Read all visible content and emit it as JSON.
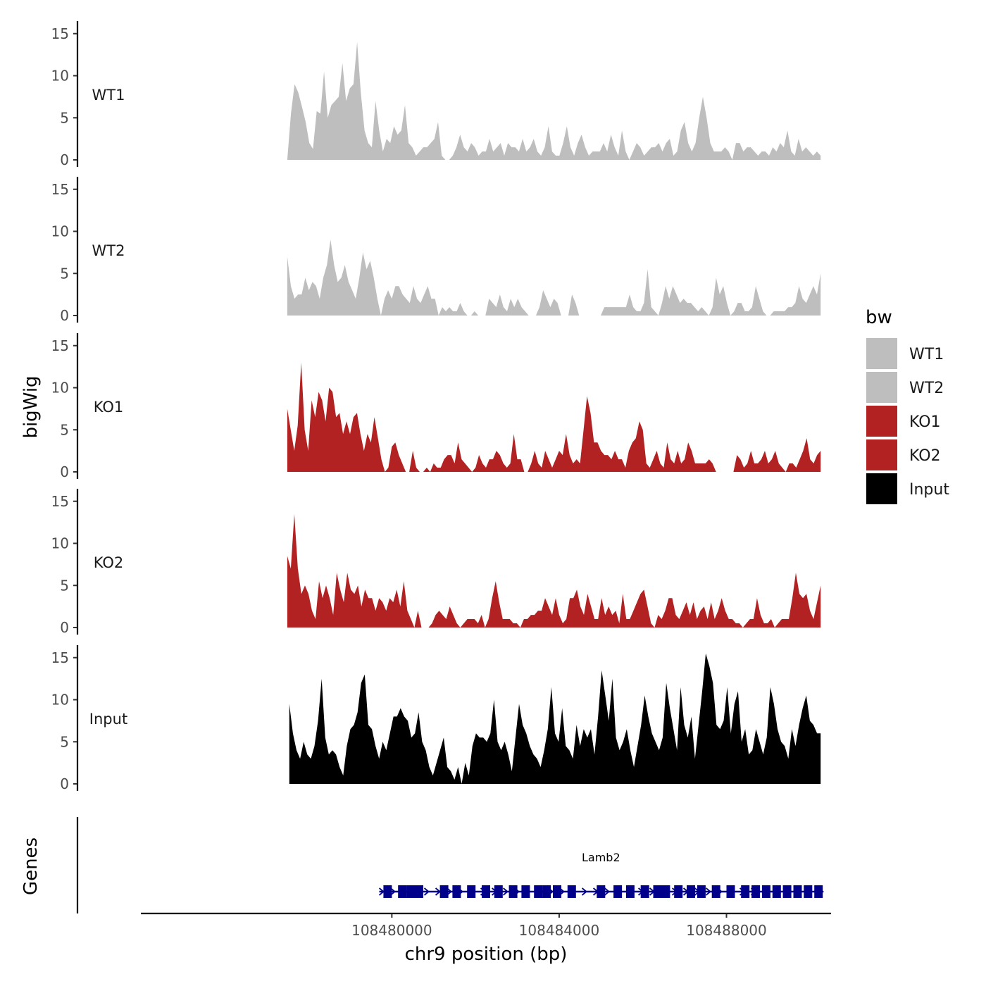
{
  "chart_data": {
    "type": "area",
    "title": "",
    "xlabel": "chr9 position (bp)",
    "ylabel": "bigWig",
    "genes_label": "Genes",
    "xlim": [
      108474000,
      108490500
    ],
    "ylim": [
      0,
      16
    ],
    "x_ticks": [
      {
        "value": 108480000,
        "label": "108480000"
      },
      {
        "value": 108484000,
        "label": "108484000"
      },
      {
        "value": 108488000,
        "label": "108488000"
      }
    ],
    "y_ticks": [
      {
        "value": 0,
        "label": "0"
      },
      {
        "value": 5,
        "label": "5"
      },
      {
        "value": 10,
        "label": "10"
      },
      {
        "value": 15,
        "label": "15"
      }
    ],
    "legend": {
      "title": "bw",
      "entries": [
        {
          "label": "WT1",
          "color": "#bebebe"
        },
        {
          "label": "WT2",
          "color": "#bebebe"
        },
        {
          "label": "KO1",
          "color": "#b22222"
        },
        {
          "label": "KO2",
          "color": "#b22222"
        },
        {
          "label": "Input",
          "color": "#000000"
        }
      ]
    },
    "series": [
      {
        "name": "WT1",
        "label": "WT1",
        "color": "#bebebe",
        "x_start": 108477500,
        "x_end": 108490250,
        "values": [
          0.0,
          5.5,
          9.0,
          8.0,
          6.3,
          4.5,
          2.0,
          1.3,
          5.8,
          5.5,
          10.5,
          5.0,
          6.5,
          7.0,
          7.5,
          11.5,
          7.0,
          8.5,
          9.0,
          14.0,
          8.0,
          3.5,
          2.0,
          1.5,
          7.0,
          3.5,
          1.0,
          2.5,
          2.0,
          4.0,
          3.0,
          3.5,
          6.5,
          2.0,
          1.5,
          0.5,
          1.0,
          1.5,
          1.5,
          2.0,
          2.5,
          4.5,
          0.5,
          0.0,
          0.0,
          0.5,
          1.5,
          3.0,
          1.5,
          1.0,
          2.0,
          1.5,
          0.5,
          1.0,
          1.0,
          2.5,
          1.0,
          1.5,
          2.0,
          0.5,
          2.0,
          1.5,
          1.5,
          1.0,
          2.5,
          1.0,
          1.5,
          2.5,
          1.0,
          0.5,
          1.5,
          4.0,
          1.0,
          0.5,
          0.5,
          2.0,
          4.0,
          1.5,
          0.5,
          2.0,
          3.0,
          1.5,
          0.5,
          1.0,
          1.0,
          1.0,
          2.0,
          1.0,
          3.0,
          1.5,
          0.5,
          3.5,
          1.0,
          0.0,
          1.0,
          2.0,
          1.5,
          0.5,
          1.0,
          1.5,
          1.5,
          2.0,
          1.0,
          2.0,
          2.5,
          0.5,
          1.0,
          3.5,
          4.5,
          2.0,
          1.0,
          2.0,
          5.0,
          7.5,
          5.0,
          2.0,
          1.0,
          1.0,
          1.0,
          1.5,
          1.0,
          0.0,
          2.0,
          2.0,
          1.0,
          1.5,
          1.5,
          1.0,
          0.5,
          1.0,
          1.0,
          0.5,
          1.5,
          1.0,
          2.0,
          1.5,
          3.5,
          1.0,
          0.5,
          2.5,
          1.0,
          1.5,
          1.0,
          0.5,
          1.0,
          0.5
        ]
      },
      {
        "name": "WT2",
        "label": "WT2",
        "color": "#bebebe",
        "x_start": 108477500,
        "x_end": 108490250,
        "values": [
          7.0,
          3.5,
          2.0,
          2.5,
          2.5,
          4.5,
          3.0,
          4.0,
          3.5,
          2.0,
          4.5,
          6.0,
          9.0,
          6.0,
          4.0,
          4.5,
          6.0,
          4.0,
          3.0,
          2.0,
          4.5,
          7.5,
          5.5,
          6.5,
          4.5,
          2.0,
          0.0,
          2.0,
          3.0,
          2.0,
          3.5,
          3.5,
          2.5,
          2.0,
          1.5,
          3.5,
          2.0,
          1.5,
          2.5,
          3.5,
          2.0,
          2.0,
          0.0,
          1.0,
          0.5,
          1.0,
          0.5,
          0.5,
          1.5,
          0.5,
          0.0,
          0.0,
          0.5,
          0.0,
          0.0,
          0.0,
          2.0,
          1.5,
          1.0,
          2.5,
          1.0,
          0.5,
          2.0,
          1.0,
          2.0,
          1.0,
          0.5,
          0.0,
          0.0,
          0.0,
          1.0,
          3.0,
          2.0,
          1.0,
          2.0,
          1.5,
          0.0,
          0.0,
          0.0,
          2.5,
          1.5,
          0.0,
          0.0,
          0.0,
          0.0,
          0.0,
          0.0,
          0.0,
          1.0,
          1.0,
          1.0,
          1.0,
          1.0,
          1.0,
          1.0,
          2.5,
          1.0,
          0.5,
          0.5,
          1.5,
          5.5,
          1.0,
          0.5,
          0.0,
          1.5,
          3.5,
          2.0,
          3.5,
          2.5,
          1.5,
          2.0,
          1.5,
          1.5,
          1.0,
          0.5,
          1.0,
          0.5,
          0.0,
          1.0,
          4.5,
          2.5,
          3.5,
          1.5,
          0.0,
          0.5,
          1.5,
          1.5,
          0.5,
          0.5,
          1.0,
          3.5,
          2.0,
          0.5,
          0.0,
          0.0,
          0.5,
          0.5,
          0.5,
          0.5,
          1.0,
          1.0,
          1.5,
          3.5,
          2.0,
          1.5,
          2.5,
          3.5,
          2.5,
          5.0
        ]
      },
      {
        "name": "KO1",
        "label": "KO1",
        "color": "#b22222",
        "x_start": 108477500,
        "x_end": 108490250,
        "values": [
          7.5,
          5.0,
          2.5,
          5.5,
          13.0,
          5.0,
          2.5,
          8.5,
          6.5,
          9.5,
          8.5,
          6.0,
          10.0,
          9.5,
          6.5,
          7.0,
          4.5,
          6.0,
          4.5,
          6.5,
          7.0,
          4.5,
          2.5,
          4.5,
          3.5,
          6.5,
          4.0,
          1.5,
          0.0,
          0.5,
          3.0,
          3.5,
          2.0,
          1.0,
          0.0,
          0.0,
          2.5,
          0.5,
          0.0,
          0.0,
          0.5,
          0.0,
          1.0,
          0.5,
          0.5,
          1.5,
          2.0,
          2.0,
          1.0,
          3.5,
          1.5,
          1.0,
          0.5,
          0.0,
          0.5,
          2.0,
          1.0,
          0.5,
          1.5,
          1.5,
          2.5,
          2.0,
          1.0,
          0.5,
          1.0,
          4.5,
          1.5,
          1.5,
          0.0,
          0.0,
          1.0,
          2.5,
          1.0,
          0.5,
          2.5,
          1.5,
          0.5,
          1.5,
          2.5,
          2.0,
          4.5,
          2.0,
          1.0,
          1.5,
          1.0,
          5.0,
          9.0,
          7.0,
          3.5,
          3.5,
          2.5,
          2.0,
          2.0,
          1.5,
          2.5,
          1.5,
          1.5,
          0.5,
          2.5,
          3.5,
          4.0,
          6.0,
          5.0,
          1.0,
          0.5,
          1.5,
          2.5,
          1.0,
          0.5,
          3.5,
          1.5,
          1.0,
          2.5,
          1.0,
          1.5,
          3.5,
          2.5,
          1.0,
          1.0,
          1.0,
          1.0,
          1.5,
          1.0,
          0.0,
          0.0,
          0.0,
          0.0,
          0.0,
          0.0,
          2.0,
          1.5,
          0.5,
          1.0,
          2.5,
          1.0,
          1.0,
          1.5,
          2.5,
          1.0,
          1.5,
          2.5,
          1.0,
          0.5,
          0.0,
          1.0,
          1.0,
          0.5,
          1.5,
          2.5,
          4.0,
          1.5,
          1.0,
          2.0,
          2.5
        ]
      },
      {
        "name": "KO2",
        "label": "KO2",
        "color": "#b22222",
        "x_start": 108477500,
        "x_end": 108490250,
        "values": [
          8.5,
          7.0,
          13.5,
          7.0,
          4.0,
          5.0,
          4.0,
          2.0,
          1.0,
          5.5,
          3.5,
          5.0,
          3.5,
          1.5,
          6.5,
          4.5,
          3.0,
          6.5,
          4.5,
          4.0,
          5.0,
          2.5,
          4.5,
          3.5,
          3.5,
          2.0,
          3.5,
          3.0,
          2.0,
          3.5,
          3.0,
          4.5,
          2.5,
          5.5,
          2.0,
          1.0,
          0.0,
          2.0,
          0.0,
          0.0,
          0.0,
          0.5,
          1.5,
          2.0,
          1.5,
          1.0,
          2.5,
          1.5,
          0.5,
          0.0,
          0.5,
          1.0,
          1.0,
          1.0,
          0.5,
          1.5,
          0.0,
          1.0,
          3.5,
          5.5,
          3.0,
          1.0,
          1.0,
          1.0,
          0.5,
          0.5,
          0.0,
          1.0,
          1.0,
          1.5,
          1.5,
          2.0,
          2.0,
          3.5,
          2.5,
          1.5,
          3.5,
          1.5,
          0.5,
          1.0,
          3.5,
          3.5,
          4.5,
          2.5,
          1.5,
          4.0,
          2.5,
          1.0,
          1.0,
          3.5,
          1.5,
          2.5,
          1.5,
          2.0,
          0.5,
          4.0,
          1.0,
          1.0,
          2.0,
          3.0,
          4.0,
          4.5,
          2.5,
          0.5,
          0.0,
          1.5,
          1.0,
          2.0,
          3.5,
          3.5,
          1.5,
          1.0,
          2.0,
          3.0,
          1.5,
          3.0,
          1.0,
          2.0,
          2.5,
          1.0,
          3.0,
          1.0,
          2.0,
          3.5,
          2.0,
          1.0,
          1.0,
          0.5,
          0.5,
          0.0,
          0.5,
          1.0,
          1.0,
          3.5,
          1.5,
          0.5,
          0.5,
          1.0,
          0.0,
          0.5,
          1.0,
          1.0,
          1.0,
          3.5,
          6.5,
          4.0,
          3.5,
          4.0,
          2.0,
          1.0,
          3.0,
          5.0
        ]
      },
      {
        "name": "Input",
        "label": "Input",
        "color": "#000000",
        "x_start": 108477550,
        "x_end": 108490250,
        "values": [
          9.5,
          6.0,
          4.0,
          3.0,
          5.0,
          3.5,
          3.0,
          4.5,
          7.5,
          12.5,
          5.5,
          3.5,
          4.0,
          3.5,
          2.0,
          1.0,
          4.5,
          6.5,
          7.0,
          8.5,
          12.0,
          13.0,
          7.0,
          6.5,
          4.5,
          3.0,
          5.0,
          4.0,
          6.0,
          8.0,
          8.0,
          9.0,
          8.0,
          7.5,
          5.5,
          6.0,
          8.5,
          5.0,
          4.0,
          2.0,
          1.0,
          2.5,
          4.0,
          5.5,
          2.0,
          1.5,
          0.5,
          2.0,
          0.0,
          2.5,
          1.0,
          4.5,
          6.0,
          5.5,
          5.5,
          5.0,
          6.0,
          10.0,
          5.0,
          4.0,
          5.0,
          3.5,
          1.5,
          5.5,
          9.5,
          7.0,
          6.0,
          4.5,
          3.5,
          3.0,
          2.0,
          4.0,
          6.5,
          11.5,
          6.0,
          5.0,
          9.0,
          4.5,
          4.0,
          3.0,
          7.0,
          4.5,
          6.5,
          5.5,
          6.5,
          3.5,
          8.0,
          13.5,
          10.5,
          7.5,
          12.5,
          5.5,
          4.0,
          5.0,
          6.5,
          4.0,
          2.0,
          4.5,
          7.0,
          10.5,
          8.0,
          6.0,
          5.0,
          4.0,
          5.5,
          12.0,
          9.0,
          6.5,
          4.0,
          11.5,
          7.0,
          5.5,
          8.0,
          3.0,
          7.0,
          11.0,
          15.5,
          14.0,
          12.0,
          7.0,
          6.5,
          7.5,
          11.5,
          6.0,
          9.5,
          11.0,
          5.0,
          6.5,
          3.5,
          4.0,
          6.5,
          5.0,
          3.5,
          5.5,
          11.5,
          9.5,
          6.5,
          5.0,
          4.5,
          3.0,
          6.5,
          4.5,
          7.0,
          9.0,
          10.5,
          7.5,
          7.0,
          6.0,
          6.0
        ]
      }
    ],
    "genes": [
      {
        "name": "Lamb2",
        "strand": "+",
        "start": 108479700,
        "end": 108490300,
        "exons": [
          108479900,
          108480250,
          108480450,
          108480650,
          108481250,
          108481550,
          108481900,
          108482250,
          108482550,
          108482900,
          108483200,
          108483500,
          108483700,
          108483950,
          108484300,
          108485000,
          108485400,
          108485700,
          108486050,
          108486350,
          108486550,
          108486850,
          108487150,
          108487400,
          108487750,
          108488100,
          108488450,
          108488700,
          108488950,
          108489200,
          108489450,
          108489700,
          108489950,
          108490200
        ]
      }
    ]
  }
}
